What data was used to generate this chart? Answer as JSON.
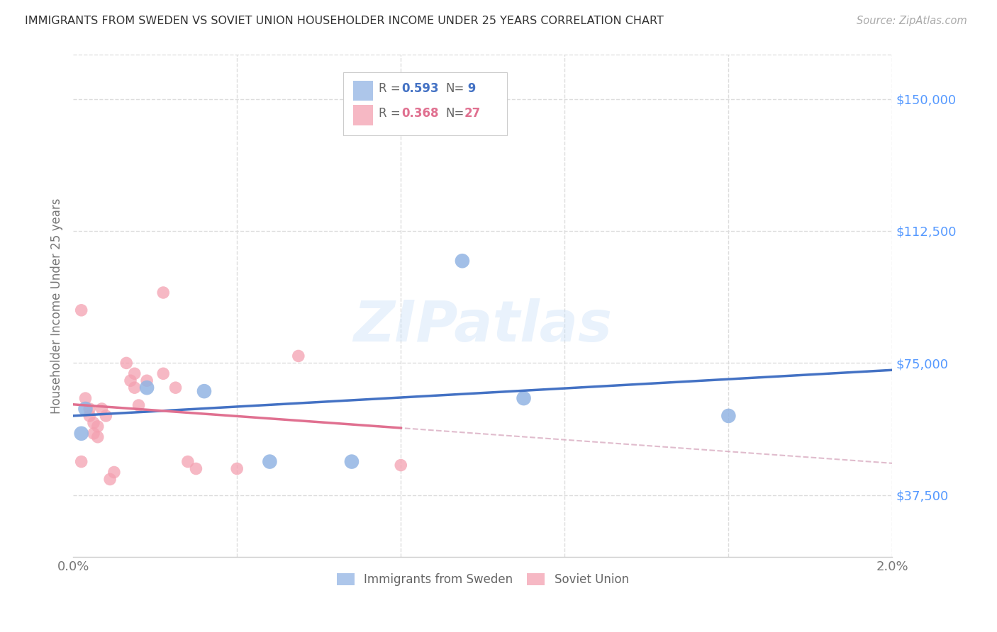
{
  "title": "IMMIGRANTS FROM SWEDEN VS SOVIET UNION HOUSEHOLDER INCOME UNDER 25 YEARS CORRELATION CHART",
  "source": "Source: ZipAtlas.com",
  "ylabel": "Householder Income Under 25 years",
  "xlim": [
    0.0,
    0.02
  ],
  "ylim": [
    20000,
    162500
  ],
  "yticks": [
    37500,
    75000,
    112500,
    150000
  ],
  "ytick_labels": [
    "$37,500",
    "$75,000",
    "$112,500",
    "$150,000"
  ],
  "xticks": [
    0.0,
    0.004,
    0.008,
    0.012,
    0.016,
    0.02
  ],
  "xtick_labels": [
    "0.0%",
    "",
    "",
    "",
    "",
    "2.0%"
  ],
  "sweden_R": 0.593,
  "sweden_N": 9,
  "soviet_R": 0.368,
  "soviet_N": 27,
  "sweden_color": "#92b4e3",
  "soviet_color": "#f4a0b0",
  "sweden_line_color": "#4472c4",
  "soviet_line_color": "#e07090",
  "sweden_points_x": [
    0.0002,
    0.0003,
    0.0018,
    0.0032,
    0.0048,
    0.0068,
    0.0095,
    0.011,
    0.016
  ],
  "sweden_points_y": [
    55000,
    62000,
    68000,
    67000,
    47000,
    47000,
    104000,
    65000,
    60000
  ],
  "soviet_points_x": [
    0.0002,
    0.0002,
    0.0003,
    0.0004,
    0.0004,
    0.0005,
    0.0005,
    0.0006,
    0.0006,
    0.0007,
    0.0008,
    0.0009,
    0.001,
    0.0013,
    0.0014,
    0.0015,
    0.0015,
    0.0016,
    0.0018,
    0.0022,
    0.0022,
    0.0025,
    0.0028,
    0.003,
    0.004,
    0.0055,
    0.008
  ],
  "soviet_points_y": [
    47000,
    90000,
    65000,
    60000,
    62000,
    58000,
    55000,
    57000,
    54000,
    62000,
    60000,
    42000,
    44000,
    75000,
    70000,
    68000,
    72000,
    63000,
    70000,
    95000,
    72000,
    68000,
    47000,
    45000,
    45000,
    77000,
    46000
  ],
  "watermark": "ZIPatlas",
  "background_color": "#ffffff",
  "grid_color": "#dddddd",
  "title_color": "#333333",
  "axis_label_color": "#777777",
  "right_tick_color": "#5599ff",
  "dashed_line_color": "#d4a0b8"
}
